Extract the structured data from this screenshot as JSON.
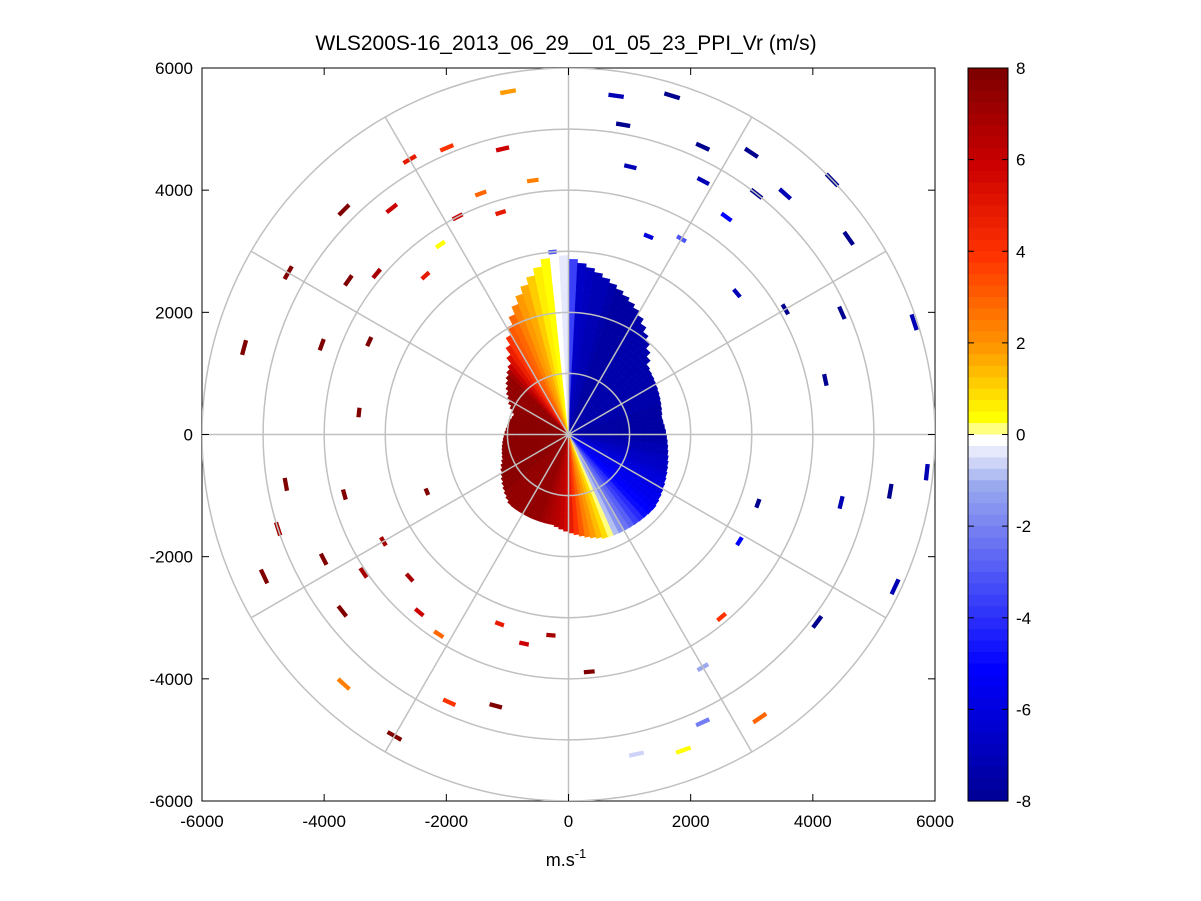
{
  "chart_data": {
    "type": "heatmap",
    "subtype": "polar-ppi-scan",
    "title": "WLS200S-16_2013_06_29__01_05_23_PPI_Vr (m/s)",
    "xlabel_base": "m.s",
    "xlabel_exp": "-1",
    "ylabel": "",
    "xlim": [
      -6000,
      6000
    ],
    "ylim": [
      -6000,
      6000
    ],
    "x_ticks": [
      "-6000",
      "-4000",
      "-2000",
      "0",
      "2000",
      "4000",
      "6000"
    ],
    "y_ticks": [
      "6000",
      "4000",
      "2000",
      "0",
      "-2000",
      "-4000",
      "-6000"
    ],
    "range_rings": [
      1000,
      2000,
      3000,
      4000,
      5000,
      6000
    ],
    "azimuth_spokes_deg": [
      0,
      30,
      60,
      90,
      120,
      150,
      180,
      210,
      240,
      270,
      300,
      330
    ],
    "colorbar": {
      "min": -8,
      "max": 8,
      "ticks": [
        "8",
        "6",
        "4",
        "2",
        "0",
        "-2",
        "-4",
        "-6",
        "-8"
      ],
      "colormap": [
        {
          "v": -8,
          "color": "#00008f"
        },
        {
          "v": -5,
          "color": "#0000ff"
        },
        {
          "v": -1,
          "color": "#9aa8ee"
        },
        {
          "v": 0,
          "color": "#ffffff"
        },
        {
          "v": 0.5,
          "color": "#ffff00"
        },
        {
          "v": 2,
          "color": "#ff9900"
        },
        {
          "v": 4,
          "color": "#ff3300"
        },
        {
          "v": 6,
          "color": "#cc0000"
        },
        {
          "v": 8,
          "color": "#800000"
        }
      ]
    },
    "near_field": {
      "max_range_m": 3000,
      "azimuth_velocity_profile": [
        {
          "az": 0,
          "vr": -0.5
        },
        {
          "az": 3,
          "vr": -6.5
        },
        {
          "az": 20,
          "vr": -7.5
        },
        {
          "az": 45,
          "vr": -7.2
        },
        {
          "az": 90,
          "vr": -7.5
        },
        {
          "az": 135,
          "vr": -5.0
        },
        {
          "az": 152,
          "vr": -1.5
        },
        {
          "az": 160,
          "vr": 1.0
        },
        {
          "az": 172,
          "vr": 3.0
        },
        {
          "az": 182,
          "vr": 6.0
        },
        {
          "az": 200,
          "vr": 7.5
        },
        {
          "az": 270,
          "vr": 7.8
        },
        {
          "az": 315,
          "vr": 7.5
        },
        {
          "az": 330,
          "vr": 3.5
        },
        {
          "az": 345,
          "vr": 1.5
        },
        {
          "az": 352,
          "vr": 0.5
        },
        {
          "az": 358,
          "vr": -0.3
        }
      ],
      "coverage_by_azimuth": [
        {
          "az": 0,
          "r": 2900
        },
        {
          "az": 30,
          "r": 2300
        },
        {
          "az": 50,
          "r": 1700
        },
        {
          "az": 80,
          "r": 1550
        },
        {
          "az": 100,
          "r": 1650
        },
        {
          "az": 130,
          "r": 1850
        },
        {
          "az": 160,
          "r": 1800
        },
        {
          "az": 190,
          "r": 1500
        },
        {
          "az": 220,
          "r": 1500
        },
        {
          "az": 250,
          "r": 1150
        },
        {
          "az": 290,
          "r": 950
        },
        {
          "az": 320,
          "r": 1500
        },
        {
          "az": 340,
          "r": 2400
        },
        {
          "az": 355,
          "r": 3000
        }
      ]
    },
    "far_field_segments": [
      {
        "az": 8,
        "r": 5600,
        "vr": -7
      },
      {
        "az": 10,
        "r": 5150,
        "vr": -8
      },
      {
        "az": 13,
        "r": 4500,
        "vr": -7
      },
      {
        "az": 17,
        "r": 5800,
        "vr": -8
      },
      {
        "az": 22,
        "r": 3500,
        "vr": -6
      },
      {
        "az": 25,
        "r": 5200,
        "vr": -8
      },
      {
        "az": 28,
        "r": 4700,
        "vr": -7
      },
      {
        "az": 30,
        "r": 3700,
        "vr": -3
      },
      {
        "az": 33,
        "r": 5500,
        "vr": -8
      },
      {
        "az": 36,
        "r": 4400,
        "vr": -5
      },
      {
        "az": 38,
        "r": 5000,
        "vr": -8
      },
      {
        "az": 42,
        "r": 5300,
        "vr": -7
      },
      {
        "az": 46,
        "r": 6000,
        "vr": -8
      },
      {
        "az": 50,
        "r": 3600,
        "vr": -7
      },
      {
        "az": 55,
        "r": 5600,
        "vr": -8
      },
      {
        "az": 60,
        "r": 4100,
        "vr": -8
      },
      {
        "az": 66,
        "r": 4900,
        "vr": -8
      },
      {
        "az": 72,
        "r": 5950,
        "vr": -7
      },
      {
        "az": 78,
        "r": 4300,
        "vr": -8
      },
      {
        "az": 96,
        "r": 5900,
        "vr": -7
      },
      {
        "az": 100,
        "r": 5350,
        "vr": -8
      },
      {
        "az": 104,
        "r": 4600,
        "vr": -7
      },
      {
        "az": 110,
        "r": 3300,
        "vr": -8
      },
      {
        "az": 115,
        "r": 5900,
        "vr": -7
      },
      {
        "az": 122,
        "r": 3300,
        "vr": -5
      },
      {
        "az": 127,
        "r": 5100,
        "vr": -8
      },
      {
        "az": 140,
        "r": 3900,
        "vr": 4
      },
      {
        "az": 146,
        "r": 5600,
        "vr": 3
      },
      {
        "az": 150,
        "r": 4400,
        "vr": -1
      },
      {
        "az": 155,
        "r": 5200,
        "vr": -2
      },
      {
        "az": 160,
        "r": 5500,
        "vr": 0.5
      },
      {
        "az": 168,
        "r": 5350,
        "vr": -0.5
      },
      {
        "az": 175,
        "r": 3900,
        "vr": 8
      },
      {
        "az": 185,
        "r": 3300,
        "vr": 7
      },
      {
        "az": 192,
        "r": 3500,
        "vr": 6
      },
      {
        "az": 195,
        "r": 4600,
        "vr": 8
      },
      {
        "az": 200,
        "r": 3300,
        "vr": 5
      },
      {
        "az": 204,
        "r": 4800,
        "vr": 4
      },
      {
        "az": 210,
        "r": 5700,
        "vr": 8
      },
      {
        "az": 213,
        "r": 3900,
        "vr": 3
      },
      {
        "az": 220,
        "r": 3800,
        "vr": 6
      },
      {
        "az": 222,
        "r": 5500,
        "vr": 2.5
      },
      {
        "az": 228,
        "r": 3500,
        "vr": 7
      },
      {
        "az": 232,
        "r": 4700,
        "vr": 8
      },
      {
        "az": 236,
        "r": 4050,
        "vr": 7
      },
      {
        "az": 240,
        "r": 3500,
        "vr": 7
      },
      {
        "az": 243,
        "r": 4500,
        "vr": 8
      },
      {
        "az": 245,
        "r": 5500,
        "vr": 8
      },
      {
        "az": 248,
        "r": 2500,
        "vr": 8
      },
      {
        "az": 252,
        "r": 5000,
        "vr": 7
      },
      {
        "az": 255,
        "r": 3800,
        "vr": 8
      },
      {
        "az": 260,
        "r": 4700,
        "vr": 8
      },
      {
        "az": 276,
        "r": 3450,
        "vr": 8
      },
      {
        "az": 285,
        "r": 5500,
        "vr": 8
      },
      {
        "az": 290,
        "r": 4300,
        "vr": 8
      },
      {
        "az": 295,
        "r": 3600,
        "vr": 8
      },
      {
        "az": 300,
        "r": 5300,
        "vr": 8
      },
      {
        "az": 305,
        "r": 4400,
        "vr": 8
      },
      {
        "az": 310,
        "r": 4100,
        "vr": 7
      },
      {
        "az": 315,
        "r": 5200,
        "vr": 8
      },
      {
        "az": 318,
        "r": 3500,
        "vr": 5
      },
      {
        "az": 322,
        "r": 4700,
        "vr": 6
      },
      {
        "az": 326,
        "r": 3750,
        "vr": 0.5
      },
      {
        "az": 330,
        "r": 5200,
        "vr": 5
      },
      {
        "az": 333,
        "r": 4000,
        "vr": 6
      },
      {
        "az": 337,
        "r": 5100,
        "vr": 4
      },
      {
        "az": 340,
        "r": 4200,
        "vr": 3
      },
      {
        "az": 343,
        "r": 3800,
        "vr": 5
      },
      {
        "az": 347,
        "r": 4800,
        "vr": 6
      },
      {
        "az": 350,
        "r": 5700,
        "vr": 2
      },
      {
        "az": 352,
        "r": 4200,
        "vr": 2.5
      },
      {
        "az": 355,
        "r": 3000,
        "vr": -3
      }
    ]
  }
}
